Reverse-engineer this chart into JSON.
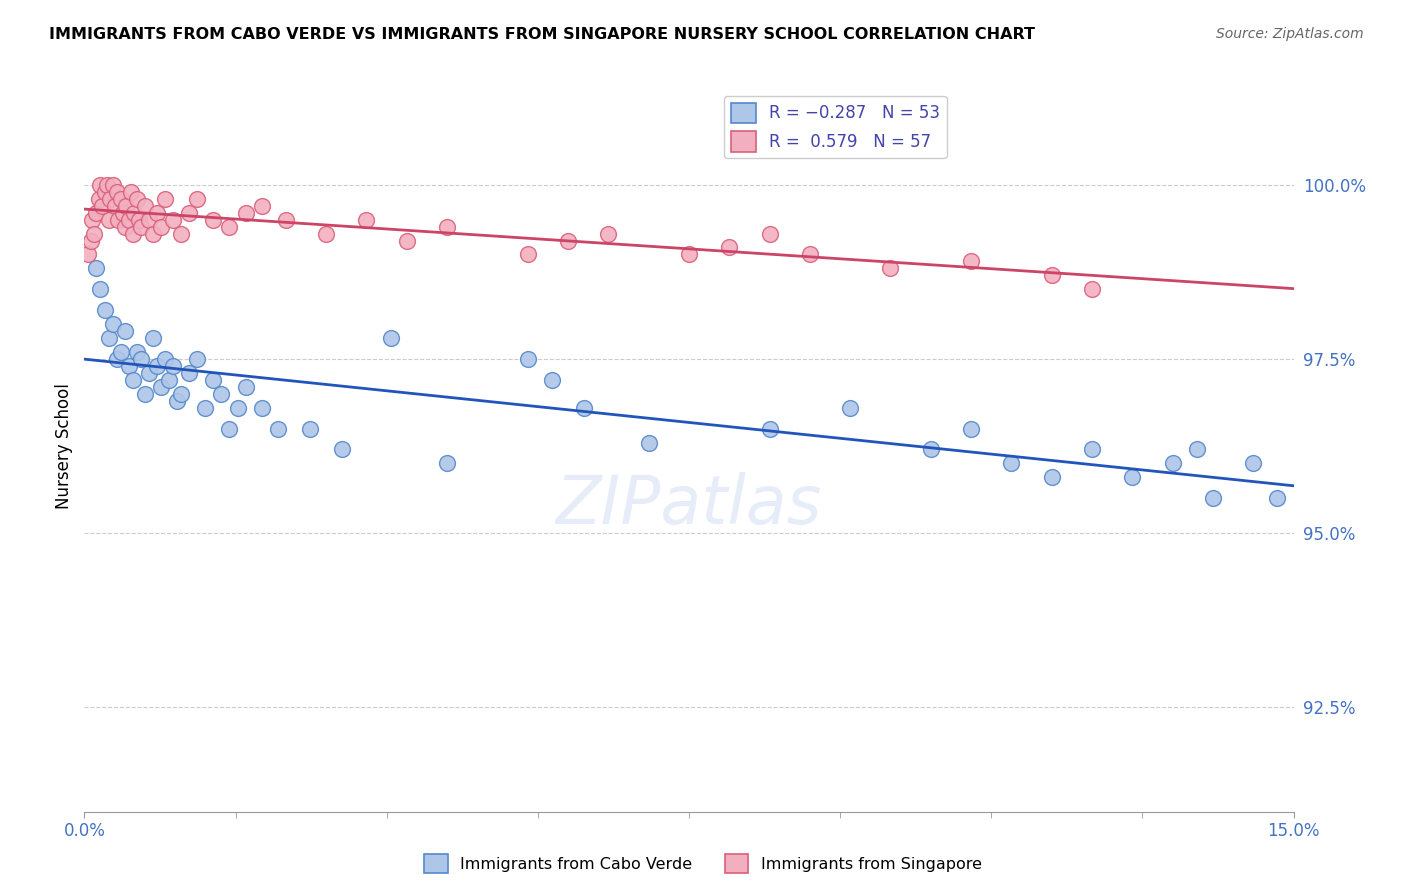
{
  "title": "IMMIGRANTS FROM CABO VERDE VS IMMIGRANTS FROM SINGAPORE NURSERY SCHOOL CORRELATION CHART",
  "source": "Source: ZipAtlas.com",
  "ylabel": "Nursery School",
  "ylabel_tick_values": [
    92.5,
    95.0,
    97.5,
    100.0
  ],
  "xlim": [
    0.0,
    15.0
  ],
  "ylim": [
    91.0,
    101.5
  ],
  "cabo_color": "#aec6e8",
  "cabo_edge": "#5588cc",
  "sing_color": "#f2afc0",
  "sing_edge": "#d9607a",
  "cabo_line_color": "#2255bb",
  "sing_line_color": "#cc4466",
  "watermark": "ZIPatlas",
  "cabo_points_x": [
    0.15,
    0.2,
    0.25,
    0.3,
    0.35,
    0.4,
    0.45,
    0.5,
    0.55,
    0.6,
    0.65,
    0.7,
    0.75,
    0.8,
    0.85,
    0.9,
    0.95,
    1.0,
    1.05,
    1.1,
    1.15,
    1.2,
    1.3,
    1.4,
    1.5,
    1.6,
    1.7,
    1.8,
    1.9,
    2.0,
    2.2,
    2.4,
    2.8,
    3.2,
    3.8,
    4.5,
    5.5,
    5.8,
    6.2,
    7.0,
    8.5,
    9.5,
    10.5,
    11.0,
    11.5,
    12.0,
    12.5,
    13.0,
    13.5,
    13.8,
    14.0,
    14.5,
    14.8
  ],
  "cabo_points_y": [
    98.8,
    98.5,
    98.2,
    97.8,
    98.0,
    97.5,
    97.6,
    97.9,
    97.4,
    97.2,
    97.6,
    97.5,
    97.0,
    97.3,
    97.8,
    97.4,
    97.1,
    97.5,
    97.2,
    97.4,
    96.9,
    97.0,
    97.3,
    97.5,
    96.8,
    97.2,
    97.0,
    96.5,
    96.8,
    97.1,
    96.8,
    96.5,
    96.5,
    96.2,
    97.8,
    96.0,
    97.5,
    97.2,
    96.8,
    96.3,
    96.5,
    96.8,
    96.2,
    96.5,
    96.0,
    95.8,
    96.2,
    95.8,
    96.0,
    96.2,
    95.5,
    96.0,
    95.5
  ],
  "sing_points_x": [
    0.05,
    0.08,
    0.1,
    0.12,
    0.15,
    0.18,
    0.2,
    0.22,
    0.25,
    0.28,
    0.3,
    0.32,
    0.35,
    0.38,
    0.4,
    0.42,
    0.45,
    0.48,
    0.5,
    0.52,
    0.55,
    0.58,
    0.6,
    0.62,
    0.65,
    0.68,
    0.7,
    0.75,
    0.8,
    0.85,
    0.9,
    0.95,
    1.0,
    1.1,
    1.2,
    1.3,
    1.4,
    1.6,
    1.8,
    2.0,
    2.2,
    2.5,
    3.0,
    3.5,
    4.0,
    4.5,
    5.5,
    6.0,
    6.5,
    7.5,
    8.0,
    8.5,
    9.0,
    10.0,
    11.0,
    12.0,
    12.5
  ],
  "sing_points_y": [
    99.0,
    99.2,
    99.5,
    99.3,
    99.6,
    99.8,
    100.0,
    99.7,
    99.9,
    100.0,
    99.5,
    99.8,
    100.0,
    99.7,
    99.9,
    99.5,
    99.8,
    99.6,
    99.4,
    99.7,
    99.5,
    99.9,
    99.3,
    99.6,
    99.8,
    99.5,
    99.4,
    99.7,
    99.5,
    99.3,
    99.6,
    99.4,
    99.8,
    99.5,
    99.3,
    99.6,
    99.8,
    99.5,
    99.4,
    99.6,
    99.7,
    99.5,
    99.3,
    99.5,
    99.2,
    99.4,
    99.0,
    99.2,
    99.3,
    99.0,
    99.1,
    99.3,
    99.0,
    98.8,
    98.9,
    98.7,
    98.5
  ]
}
